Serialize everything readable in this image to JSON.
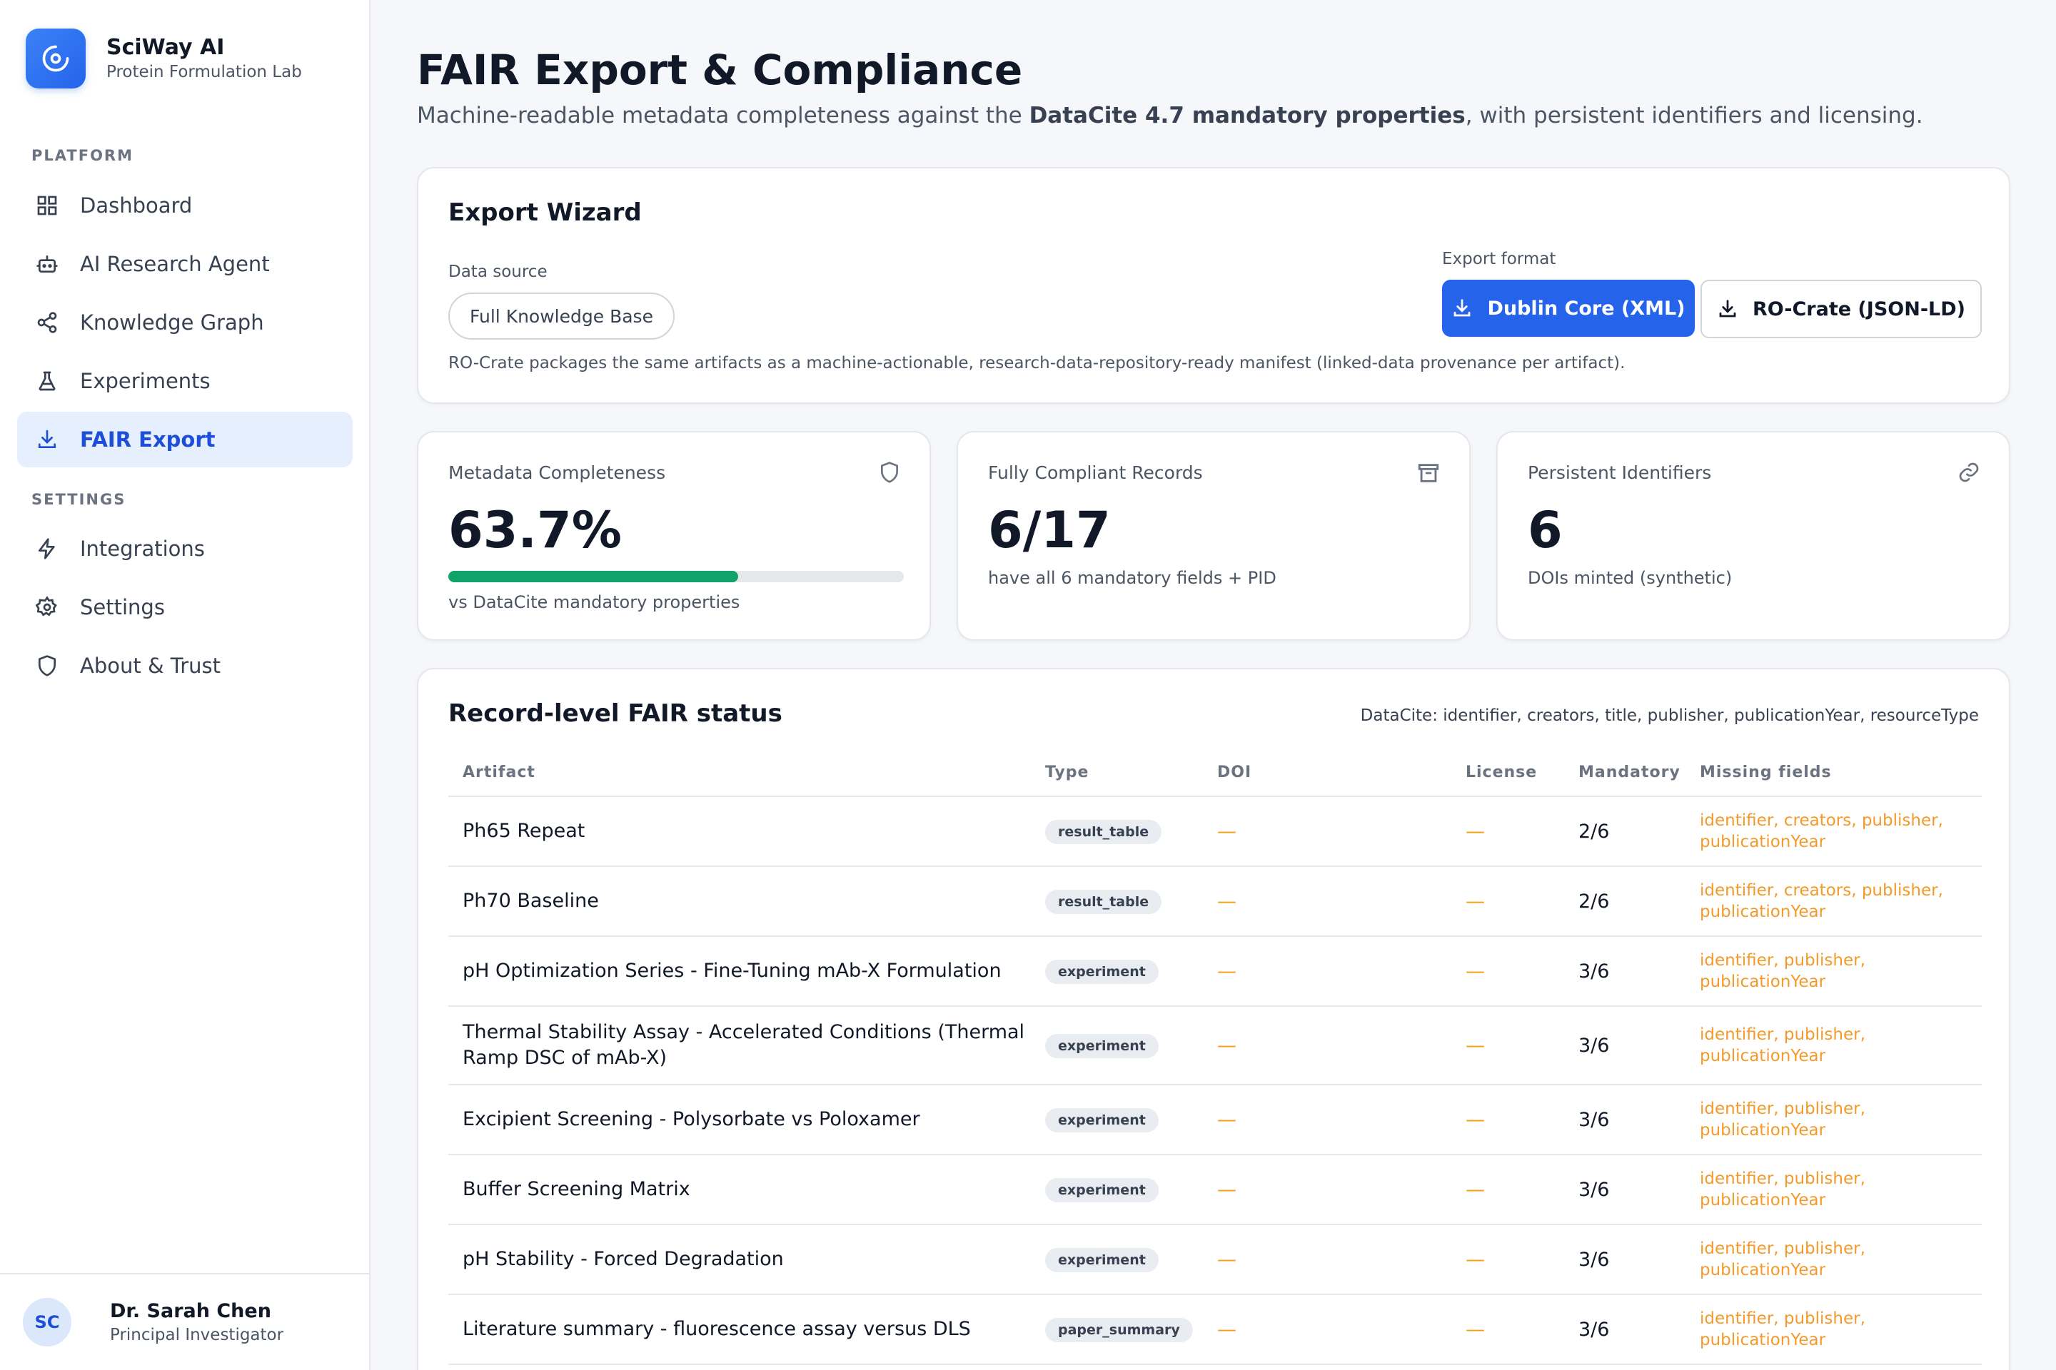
{
  "brand": {
    "name": "SciWay AI",
    "subtitle": "Protein Formulation Lab"
  },
  "nav": {
    "platform_label": "PLATFORM",
    "settings_label": "SETTINGS",
    "items": [
      {
        "label": "Dashboard",
        "icon": "grid-icon"
      },
      {
        "label": "AI Research Agent",
        "icon": "robot-icon"
      },
      {
        "label": "Knowledge Graph",
        "icon": "share-graph-icon"
      },
      {
        "label": "Experiments",
        "icon": "flask-icon"
      },
      {
        "label": "FAIR Export",
        "icon": "download-icon",
        "active": true
      },
      {
        "label": "Integrations",
        "icon": "lightning-icon"
      },
      {
        "label": "Settings",
        "icon": "gear-icon"
      },
      {
        "label": "About & Trust",
        "icon": "shield-icon"
      }
    ]
  },
  "user": {
    "initials": "SC",
    "name": "Dr. Sarah Chen",
    "role": "Principal Investigator"
  },
  "page": {
    "title": "FAIR Export & Compliance",
    "subtitle_pre": "Machine-readable metadata completeness against the ",
    "subtitle_bold": "DataCite 4.7 mandatory properties",
    "subtitle_post": ", with persistent identifiers and licensing."
  },
  "wizard": {
    "title": "Export Wizard",
    "data_source_label": "Data source",
    "data_source_value": "Full Knowledge Base",
    "export_format_label": "Export format",
    "primary_button": "Dublin Core (XML)",
    "secondary_button": "RO-Crate (JSON-LD)",
    "note": "RO-Crate packages the same artifacts as a machine-actionable, research-data-repository-ready manifest (linked-data provenance per artifact)."
  },
  "stats": {
    "completeness": {
      "label": "Metadata Completeness",
      "value": "63.7%",
      "progress_percent": 63.7,
      "sub": "vs DataCite mandatory properties",
      "icon": "shield-outline-icon"
    },
    "compliant": {
      "label": "Fully Compliant Records",
      "value": "6/17",
      "sub": "have all 6 mandatory fields + PID",
      "icon": "archive-icon"
    },
    "pids": {
      "label": "Persistent Identifiers",
      "value": "6",
      "sub": "DOIs minted (synthetic)",
      "icon": "link-icon"
    }
  },
  "records": {
    "title": "Record-level FAIR status",
    "note": "DataCite: identifier, creators, title, publisher, publicationYear, resourceType",
    "columns": [
      "Artifact",
      "Type",
      "DOI",
      "License",
      "Mandatory",
      "Missing fields"
    ],
    "rows": [
      {
        "artifact": "Ph65 Repeat",
        "type": "result_table",
        "doi": "—",
        "license": "—",
        "mandatory": "2/6",
        "missing_1": "identifier, creators, publisher,",
        "missing_2": "publicationYear"
      },
      {
        "artifact": "Ph70 Baseline",
        "type": "result_table",
        "doi": "—",
        "license": "—",
        "mandatory": "2/6",
        "missing_1": "identifier, creators, publisher,",
        "missing_2": "publicationYear"
      },
      {
        "artifact": "pH Optimization Series - Fine-Tuning mAb-X Formulation",
        "type": "experiment",
        "doi": "—",
        "license": "—",
        "mandatory": "3/6",
        "missing_1": "identifier, publisher,",
        "missing_2": "publicationYear"
      },
      {
        "artifact_1": "Thermal Stability Assay - Accelerated Conditions (Thermal",
        "artifact_2": "Ramp DSC of mAb-X)",
        "type": "experiment",
        "doi": "—",
        "license": "—",
        "mandatory": "3/6",
        "missing_1": "identifier, publisher,",
        "missing_2": "publicationYear"
      },
      {
        "artifact": "Excipient Screening - Polysorbate vs Poloxamer",
        "type": "experiment",
        "doi": "—",
        "license": "—",
        "mandatory": "3/6",
        "missing_1": "identifier, publisher,",
        "missing_2": "publicationYear"
      },
      {
        "artifact": "Buffer Screening Matrix",
        "type": "experiment",
        "doi": "—",
        "license": "—",
        "mandatory": "3/6",
        "missing_1": "identifier, publisher,",
        "missing_2": "publicationYear"
      },
      {
        "artifact": "pH Stability - Forced Degradation",
        "type": "experiment",
        "doi": "—",
        "license": "—",
        "mandatory": "3/6",
        "missing_1": "identifier, publisher,",
        "missing_2": "publicationYear"
      },
      {
        "artifact": "Literature summary - fluorescence assay versus DLS",
        "type": "paper_summary",
        "doi": "—",
        "license": "—",
        "mandatory": "3/6",
        "missing_1": "identifier, publisher,",
        "missing_2": "publicationYear"
      }
    ]
  },
  "colors": {
    "accent": "#2563eb",
    "active_bg": "#e6effd",
    "progress": "#10a36a",
    "missing": "#f39a2b"
  }
}
